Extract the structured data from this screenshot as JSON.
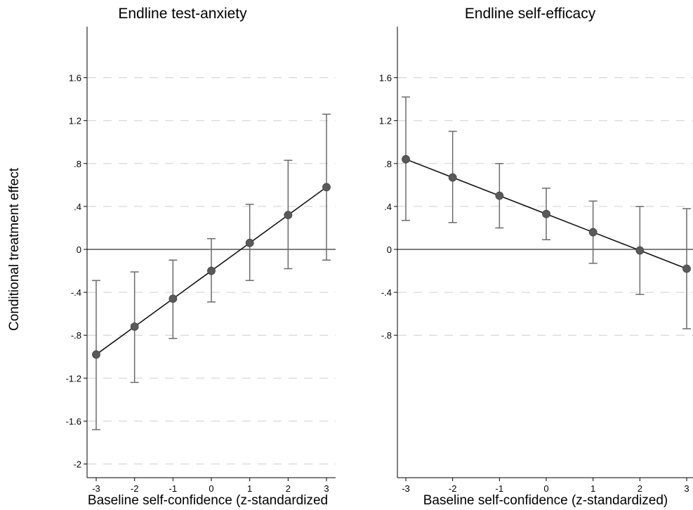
{
  "figure": {
    "ylabel": "Conditional treatment effect"
  },
  "chart_data": [
    {
      "type": "line",
      "title": "Endline test-anxiety",
      "xlabel": "Baseline self-confidence (z-standardized",
      "ylabel": "Conditional treatment effect",
      "x_ticks": [
        -3,
        -2,
        -1,
        0,
        1,
        2,
        3
      ],
      "x_tick_labels": [
        "-3",
        "-2",
        "-1",
        "0",
        "1",
        "2",
        "3"
      ],
      "y_ticks": [
        -2,
        -1.6,
        -1.2,
        -0.8,
        -0.4,
        0,
        0.4,
        0.8,
        1.2,
        1.6
      ],
      "y_tick_labels": [
        "-2",
        "-1.6",
        "-1.2",
        "-.8",
        "-.4",
        "0",
        ".4",
        ".8",
        "1.2",
        "1.6"
      ],
      "xlim": [
        -3.15,
        3.15
      ],
      "ylim": [
        -2.05,
        2.05
      ],
      "grid": "horizontal dashed",
      "reference_line_y": 0,
      "series": [
        {
          "x": [
            -3,
            -2,
            -1,
            0,
            1,
            2,
            3
          ],
          "y": [
            -0.98,
            -0.72,
            -0.46,
            -0.2,
            0.06,
            0.32,
            0.58
          ],
          "ci_low": [
            -1.68,
            -1.24,
            -0.83,
            -0.49,
            -0.29,
            -0.18,
            -0.1
          ],
          "ci_high": [
            -0.29,
            -0.21,
            -0.1,
            0.1,
            0.42,
            0.83,
            1.26
          ]
        }
      ]
    },
    {
      "type": "line",
      "title": "Endline self-efficacy",
      "xlabel": "Baseline self-confidence (z-standardized)",
      "ylabel": "Conditional treatment effect",
      "x_ticks": [
        -3,
        -2,
        -1,
        0,
        1,
        2,
        3
      ],
      "x_tick_labels": [
        "-3",
        "-2",
        "-1",
        "0",
        "1",
        "2",
        "3"
      ],
      "y_ticks": [
        -0.8,
        -0.4,
        0,
        0.4,
        0.8,
        1.2,
        1.6
      ],
      "y_tick_labels": [
        "-.8",
        "-.4",
        "0",
        ".4",
        ".8",
        "1.2",
        "1.6"
      ],
      "xlim": [
        -3.05,
        3.05
      ],
      "ylim": [
        -2.05,
        2.05
      ],
      "grid": "horizontal dashed",
      "reference_line_y": 0,
      "series": [
        {
          "x": [
            -3,
            -2,
            -1,
            0,
            1,
            2,
            3
          ],
          "y": [
            0.84,
            0.67,
            0.5,
            0.33,
            0.16,
            -0.01,
            -0.18
          ],
          "ci_low": [
            0.27,
            0.25,
            0.2,
            0.09,
            -0.13,
            -0.42,
            -0.74
          ],
          "ci_high": [
            1.42,
            1.1,
            0.8,
            0.57,
            0.45,
            0.4,
            0.38
          ]
        }
      ]
    }
  ]
}
